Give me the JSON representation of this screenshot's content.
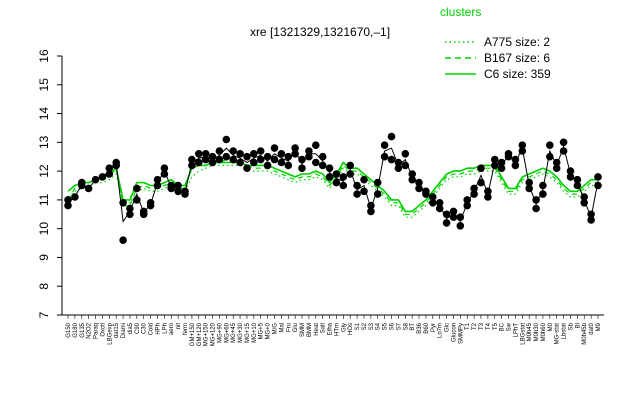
{
  "chart_data": {
    "type": "line",
    "title": "xre [1321329,1321670,–1]",
    "xlabel": "",
    "ylabel": "",
    "ylim": [
      7,
      16
    ],
    "yticks": [
      7,
      8,
      9,
      10,
      11,
      12,
      13,
      14,
      15,
      16
    ],
    "grid": false,
    "legend_position": "top-right",
    "legend_title": "clusters",
    "legend": [
      {
        "label": "A775 size: 2",
        "style": "dotted",
        "color": "#00d000"
      },
      {
        "label": "B167 size: 6",
        "style": "dashed",
        "color": "#00d000"
      },
      {
        "label": "C6 size: 359",
        "style": "solid",
        "color": "#00d000"
      }
    ],
    "x_tick_labels": [
      "G150",
      "G180",
      "G135",
      "N2O2",
      "Paraq",
      "Oxctl",
      "LBGexp",
      "dat15",
      "Diami",
      "dia5",
      "C90",
      "C30",
      "Cold",
      "HPh",
      "LPh",
      "aero",
      "nit",
      "ferm",
      "GM+150",
      "GM+120",
      "MG+150",
      "MG+120",
      "MG+90",
      "MG+60",
      "MG+45",
      "MG+30",
      "MG+15",
      "MG+10",
      "MG+5",
      "MG+0",
      "M/G",
      "Mal",
      "Fru",
      "Glu",
      "SMM",
      "BMM",
      "Heat",
      "Salt",
      "Etha",
      "HTm",
      "Gly",
      "HOs",
      "S1",
      "S2",
      "S3",
      "S4",
      "S5",
      "S6",
      "S7",
      "S8",
      "BT",
      "B36",
      "B60",
      "Pyr",
      "Lo7m",
      "Glc",
      "Glucon",
      "SMMPy",
      "T1",
      "T2",
      "T3",
      "T4",
      "T5",
      "BC",
      "Sw",
      "LPhT",
      "LBGstat",
      "M0h45",
      "M0h30",
      "M0h60",
      "M0",
      "MG-stat",
      "Lbstat",
      "Sb",
      "Bl",
      "M0h45b",
      "dat0",
      "M9"
    ],
    "series": [
      {
        "style": "solid",
        "color": "#00d000",
        "values": [
          11.3,
          11.5,
          11.6,
          11.6,
          11.7,
          11.8,
          11.9,
          12.1,
          11.0,
          11.0,
          11.6,
          11.6,
          11.5,
          11.5,
          11.6,
          11.7,
          11.5,
          11.5,
          12.1,
          12.2,
          12.2,
          12.3,
          12.3,
          12.3,
          12.3,
          12.3,
          12.2,
          12.2,
          12.2,
          12.2,
          12.1,
          12.0,
          11.9,
          11.8,
          11.9,
          11.9,
          12.0,
          11.9,
          11.6,
          11.9,
          12.3,
          12.1,
          12.1,
          11.9,
          11.7,
          11.5,
          11.3,
          11.0,
          11.0,
          10.6,
          10.6,
          10.8,
          11.0,
          11.3,
          11.6,
          11.9,
          12.0,
          12.0,
          12.1,
          12.1,
          12.2,
          12.2,
          12.2,
          11.8,
          11.4,
          11.4,
          11.8,
          11.9,
          12.0,
          12.1,
          12.0,
          11.8,
          11.5,
          11.3,
          11.3,
          11.5,
          11.7,
          11.7
        ]
      },
      {
        "style": "dashed",
        "color": "#00d000",
        "values": [
          11.0,
          11.4,
          11.6,
          11.6,
          11.7,
          11.8,
          11.8,
          12.1,
          10.8,
          10.8,
          11.4,
          11.5,
          11.4,
          11.4,
          11.5,
          11.6,
          11.4,
          11.4,
          12.2,
          12.3,
          12.3,
          12.4,
          12.3,
          12.4,
          12.4,
          12.3,
          12.2,
          12.1,
          12.1,
          12.1,
          12.0,
          11.9,
          11.8,
          11.7,
          11.8,
          11.8,
          11.9,
          11.8,
          11.5,
          11.8,
          12.2,
          12.0,
          12.0,
          11.8,
          11.6,
          11.4,
          11.2,
          10.9,
          10.9,
          10.5,
          10.5,
          10.7,
          10.9,
          11.2,
          11.5,
          11.8,
          11.9,
          11.9,
          12.0,
          12.0,
          12.1,
          12.1,
          12.1,
          11.7,
          11.3,
          11.3,
          11.7,
          11.8,
          11.9,
          12.0,
          11.9,
          11.7,
          11.4,
          11.2,
          11.2,
          11.4,
          11.6,
          11.6
        ]
      },
      {
        "style": "dotted",
        "color": "#00d000",
        "values": [
          11.1,
          11.3,
          11.4,
          11.5,
          11.6,
          11.6,
          11.7,
          11.9,
          10.9,
          10.9,
          11.3,
          11.4,
          11.3,
          11.3,
          11.4,
          11.5,
          11.3,
          11.3,
          11.8,
          12.0,
          12.1,
          12.2,
          12.2,
          12.2,
          12.2,
          12.2,
          12.1,
          12.0,
          12.0,
          12.0,
          11.9,
          11.8,
          11.7,
          11.6,
          11.7,
          11.7,
          11.8,
          11.7,
          11.4,
          11.7,
          12.1,
          11.9,
          11.9,
          11.7,
          11.5,
          11.3,
          11.1,
          10.8,
          10.8,
          10.4,
          10.4,
          10.6,
          10.8,
          11.1,
          11.4,
          11.7,
          11.8,
          11.8,
          11.9,
          11.9,
          12.0,
          12.0,
          12.0,
          11.6,
          11.2,
          11.2,
          11.6,
          11.7,
          11.8,
          11.9,
          11.8,
          11.6,
          11.3,
          11.1,
          11.1,
          11.3,
          11.5,
          11.5
        ]
      }
    ],
    "points": [
      [
        0,
        10.8
      ],
      [
        0,
        11.0
      ],
      [
        1,
        11.1
      ],
      [
        2,
        11.5
      ],
      [
        2,
        11.6
      ],
      [
        3,
        11.4
      ],
      [
        4,
        11.7
      ],
      [
        5,
        11.8
      ],
      [
        6,
        11.9
      ],
      [
        6,
        12.1
      ],
      [
        7,
        12.2
      ],
      [
        7,
        12.3
      ],
      [
        8,
        10.9
      ],
      [
        8,
        9.6
      ],
      [
        9,
        10.5
      ],
      [
        9,
        10.7
      ],
      [
        10,
        11.4
      ],
      [
        10,
        11.0
      ],
      [
        11,
        10.5
      ],
      [
        11,
        10.6
      ],
      [
        12,
        10.9
      ],
      [
        12,
        10.8
      ],
      [
        13,
        11.7
      ],
      [
        13,
        11.5
      ],
      [
        14,
        11.9
      ],
      [
        14,
        12.1
      ],
      [
        15,
        11.5
      ],
      [
        15,
        11.4
      ],
      [
        16,
        11.5
      ],
      [
        16,
        11.3
      ],
      [
        17,
        11.3
      ],
      [
        17,
        11.2
      ],
      [
        18,
        12.2
      ],
      [
        18,
        12.4
      ],
      [
        19,
        12.6
      ],
      [
        19,
        12.3
      ],
      [
        20,
        12.4
      ],
      [
        20,
        12.6
      ],
      [
        21,
        12.3
      ],
      [
        21,
        12.5
      ],
      [
        22,
        12.7
      ],
      [
        22,
        12.4
      ],
      [
        23,
        12.5
      ],
      [
        23,
        13.1
      ],
      [
        24,
        12.4
      ],
      [
        24,
        12.7
      ],
      [
        25,
        12.6
      ],
      [
        25,
        12.3
      ],
      [
        26,
        12.1
      ],
      [
        26,
        12.5
      ],
      [
        27,
        12.6
      ],
      [
        27,
        12.3
      ],
      [
        28,
        12.7
      ],
      [
        28,
        12.4
      ],
      [
        29,
        12.2
      ],
      [
        29,
        12.5
      ],
      [
        30,
        12.8
      ],
      [
        30,
        12.4
      ],
      [
        31,
        12.3
      ],
      [
        31,
        12.6
      ],
      [
        32,
        12.5
      ],
      [
        32,
        12.2
      ],
      [
        33,
        12.6
      ],
      [
        33,
        12.8
      ],
      [
        34,
        12.4
      ],
      [
        34,
        12.1
      ],
      [
        35,
        12.7
      ],
      [
        35,
        12.5
      ],
      [
        36,
        12.3
      ],
      [
        36,
        12.9
      ],
      [
        37,
        12.5
      ],
      [
        37,
        12.2
      ],
      [
        38,
        12.1
      ],
      [
        38,
        11.8
      ],
      [
        39,
        11.9
      ],
      [
        39,
        11.6
      ],
      [
        40,
        11.8
      ],
      [
        40,
        11.5
      ],
      [
        41,
        12.2
      ],
      [
        41,
        11.9
      ],
      [
        42,
        11.2
      ],
      [
        42,
        11.5
      ],
      [
        43,
        11.7
      ],
      [
        43,
        11.3
      ],
      [
        44,
        10.8
      ],
      [
        44,
        10.6
      ],
      [
        45,
        11.6
      ],
      [
        45,
        11.2
      ],
      [
        46,
        12.5
      ],
      [
        46,
        12.9
      ],
      [
        47,
        13.2
      ],
      [
        47,
        12.4
      ],
      [
        48,
        12.3
      ],
      [
        48,
        12.1
      ],
      [
        49,
        12.6
      ],
      [
        49,
        12.2
      ],
      [
        50,
        11.9
      ],
      [
        50,
        11.7
      ],
      [
        51,
        11.6
      ],
      [
        51,
        11.4
      ],
      [
        52,
        11.2
      ],
      [
        52,
        11.3
      ],
      [
        53,
        11.1
      ],
      [
        53,
        10.9
      ],
      [
        54,
        10.9
      ],
      [
        54,
        10.7
      ],
      [
        55,
        10.5
      ],
      [
        55,
        10.2
      ],
      [
        56,
        10.6
      ],
      [
        56,
        10.4
      ],
      [
        57,
        10.1
      ],
      [
        57,
        10.4
      ],
      [
        58,
        10.8
      ],
      [
        58,
        11.0
      ],
      [
        59,
        11.2
      ],
      [
        59,
        11.4
      ],
      [
        60,
        11.6
      ],
      [
        60,
        12.1
      ],
      [
        61,
        11.3
      ],
      [
        61,
        11.1
      ],
      [
        62,
        12.2
      ],
      [
        62,
        12.4
      ],
      [
        63,
        12.3
      ],
      [
        63,
        12.1
      ],
      [
        64,
        12.5
      ],
      [
        64,
        12.6
      ],
      [
        65,
        12.4
      ],
      [
        65,
        12.2
      ],
      [
        66,
        12.7
      ],
      [
        66,
        12.9
      ],
      [
        67,
        11.4
      ],
      [
        67,
        11.6
      ],
      [
        68,
        11.0
      ],
      [
        68,
        10.7
      ],
      [
        69,
        11.5
      ],
      [
        69,
        11.2
      ],
      [
        70,
        12.5
      ],
      [
        70,
        12.9
      ],
      [
        71,
        12.1
      ],
      [
        71,
        12.3
      ],
      [
        72,
        13.0
      ],
      [
        72,
        12.7
      ],
      [
        73,
        12.0
      ],
      [
        73,
        11.8
      ],
      [
        74,
        11.7
      ],
      [
        74,
        11.5
      ],
      [
        75,
        10.9
      ],
      [
        75,
        11.1
      ],
      [
        76,
        10.5
      ],
      [
        76,
        10.3
      ],
      [
        77,
        11.5
      ],
      [
        77,
        11.8
      ]
    ]
  }
}
